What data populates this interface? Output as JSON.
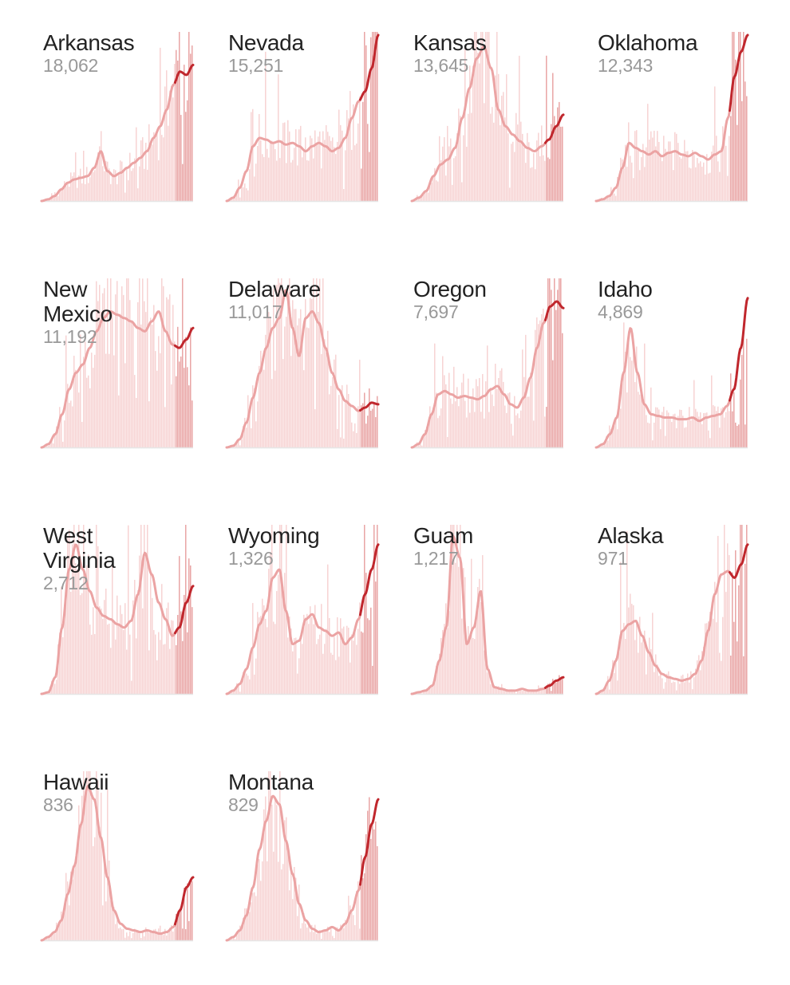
{
  "chart_data": [
    {
      "type": "bar",
      "name": "Arkansas",
      "value": "18,062",
      "shape": [
        0,
        0.01,
        0.03,
        0.07,
        0.11,
        0.13,
        0.14,
        0.15,
        0.2,
        0.3,
        0.18,
        0.15,
        0.17,
        0.2,
        0.23,
        0.26,
        0.3,
        0.38,
        0.45,
        0.55,
        0.7,
        0.78,
        0.76,
        0.82
      ],
      "recent_start": 0.88
    },
    {
      "type": "bar",
      "name": "Nevada",
      "value": "15,251",
      "shape": [
        0,
        0.02,
        0.08,
        0.18,
        0.33,
        0.38,
        0.37,
        0.35,
        0.36,
        0.34,
        0.35,
        0.33,
        0.3,
        0.33,
        0.35,
        0.33,
        0.3,
        0.32,
        0.38,
        0.5,
        0.6,
        0.66,
        0.8,
        1.0
      ],
      "recent_start": 0.88
    },
    {
      "type": "bar",
      "name": "Kansas",
      "value": "13,645",
      "shape": [
        0,
        0.02,
        0.06,
        0.15,
        0.22,
        0.25,
        0.32,
        0.5,
        0.68,
        0.86,
        0.93,
        0.8,
        0.55,
        0.45,
        0.4,
        0.36,
        0.32,
        0.3,
        0.33,
        0.37,
        0.45,
        0.52
      ],
      "recent_start": 0.88
    },
    {
      "type": "bar",
      "name": "Oklahoma",
      "value": "12,343",
      "shape": [
        0,
        0.01,
        0.03,
        0.08,
        0.2,
        0.35,
        0.32,
        0.3,
        0.28,
        0.3,
        0.27,
        0.29,
        0.3,
        0.28,
        0.27,
        0.29,
        0.27,
        0.25,
        0.28,
        0.3,
        0.5,
        0.75,
        0.9,
        1.0
      ],
      "recent_start": 0.88
    },
    {
      "type": "bar",
      "name": "New Mexico",
      "value": "11,192",
      "shape": [
        0,
        0.02,
        0.08,
        0.2,
        0.35,
        0.45,
        0.5,
        0.6,
        0.7,
        0.78,
        0.82,
        0.8,
        0.78,
        0.76,
        0.72,
        0.7,
        0.76,
        0.82,
        0.7,
        0.62,
        0.6,
        0.65,
        0.72
      ],
      "recent_start": 0.88
    },
    {
      "type": "bar",
      "name": "Delaware",
      "value": "11,017",
      "shape": [
        0,
        0.01,
        0.05,
        0.15,
        0.3,
        0.45,
        0.6,
        0.72,
        0.78,
        0.95,
        0.72,
        0.55,
        0.78,
        0.82,
        0.75,
        0.6,
        0.45,
        0.35,
        0.28,
        0.25,
        0.22,
        0.24,
        0.27,
        0.26
      ],
      "recent_start": 0.88
    },
    {
      "type": "bar",
      "name": "Oregon",
      "value": "7,697",
      "shape": [
        0,
        0.02,
        0.08,
        0.2,
        0.32,
        0.34,
        0.32,
        0.3,
        0.31,
        0.3,
        0.29,
        0.31,
        0.35,
        0.37,
        0.32,
        0.26,
        0.24,
        0.3,
        0.42,
        0.6,
        0.75,
        0.85,
        0.88,
        0.84
      ],
      "recent_start": 0.88
    },
    {
      "type": "bar",
      "name": "Idaho",
      "value": "4,869",
      "shape": [
        0,
        0.02,
        0.08,
        0.18,
        0.45,
        0.72,
        0.45,
        0.26,
        0.2,
        0.19,
        0.18,
        0.18,
        0.17,
        0.17,
        0.18,
        0.16,
        0.18,
        0.19,
        0.2,
        0.25,
        0.35,
        0.6,
        0.9
      ],
      "recent_start": 0.88
    },
    {
      "type": "bar",
      "name": "West Virginia",
      "value": "2,712",
      "shape": [
        0,
        0.01,
        0.1,
        0.4,
        0.75,
        0.9,
        0.75,
        0.62,
        0.52,
        0.47,
        0.45,
        0.42,
        0.4,
        0.44,
        0.6,
        0.85,
        0.72,
        0.55,
        0.45,
        0.35,
        0.4,
        0.55,
        0.65
      ],
      "recent_start": 0.88
    },
    {
      "type": "bar",
      "name": "Wyoming",
      "value": "1,326",
      "shape": [
        0,
        0.02,
        0.06,
        0.15,
        0.28,
        0.42,
        0.5,
        0.7,
        0.75,
        0.5,
        0.3,
        0.32,
        0.45,
        0.48,
        0.4,
        0.38,
        0.35,
        0.37,
        0.3,
        0.34,
        0.45,
        0.6,
        0.75,
        0.9
      ],
      "recent_start": 0.88
    },
    {
      "type": "bar",
      "name": "Guam",
      "value": "1,217",
      "shape": [
        0,
        0.01,
        0.02,
        0.05,
        0.2,
        0.4,
        0.95,
        0.82,
        0.3,
        0.4,
        0.62,
        0.15,
        0.04,
        0.03,
        0.02,
        0.02,
        0.03,
        0.02,
        0.02,
        0.03,
        0.05,
        0.08,
        0.1
      ],
      "recent_start": 0.88
    },
    {
      "type": "bar",
      "name": "Alaska",
      "value": "971",
      "shape": [
        0,
        0.02,
        0.08,
        0.2,
        0.38,
        0.42,
        0.44,
        0.35,
        0.25,
        0.17,
        0.12,
        0.1,
        0.09,
        0.08,
        0.09,
        0.12,
        0.2,
        0.38,
        0.6,
        0.72,
        0.74,
        0.7,
        0.78,
        0.9
      ],
      "recent_start": 0.88
    },
    {
      "type": "bar",
      "name": "Hawaii",
      "value": "836",
      "shape": [
        0,
        0.02,
        0.05,
        0.12,
        0.28,
        0.45,
        0.7,
        0.93,
        0.85,
        0.62,
        0.38,
        0.18,
        0.1,
        0.07,
        0.06,
        0.05,
        0.06,
        0.05,
        0.04,
        0.05,
        0.08,
        0.18,
        0.32,
        0.38
      ],
      "recent_start": 0.88
    },
    {
      "type": "bar",
      "name": "Montana",
      "value": "829",
      "shape": [
        0,
        0.02,
        0.06,
        0.15,
        0.32,
        0.55,
        0.72,
        0.87,
        0.82,
        0.6,
        0.4,
        0.22,
        0.12,
        0.07,
        0.05,
        0.06,
        0.08,
        0.06,
        0.1,
        0.18,
        0.3,
        0.5,
        0.7,
        0.85
      ],
      "recent_start": 0.88
    }
  ],
  "colors": {
    "bar_light": "#f7d3d3",
    "bar_recent": "#e9a5a5",
    "line_light": "#eba3a3",
    "line_recent": "#c0272d",
    "text_name": "#222222",
    "text_value": "#999999",
    "axis": "#e6e6e6"
  }
}
